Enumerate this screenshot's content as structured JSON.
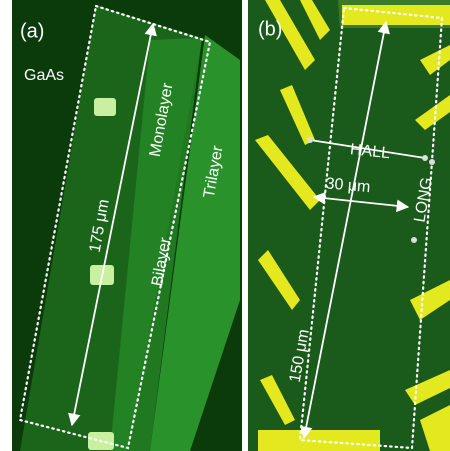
{
  "panels": [
    {
      "label": "(a)",
      "texts": {
        "substrate": "GaAs",
        "monolayer": "Monolayer",
        "bilayer": "Bilayer",
        "trilayer": "Trilayer",
        "length": "175 μm"
      }
    },
    {
      "label": "(b)",
      "texts": {
        "hall": "HALL",
        "long": "LONG",
        "width": "30 μm",
        "length": "150 μm"
      }
    }
  ]
}
